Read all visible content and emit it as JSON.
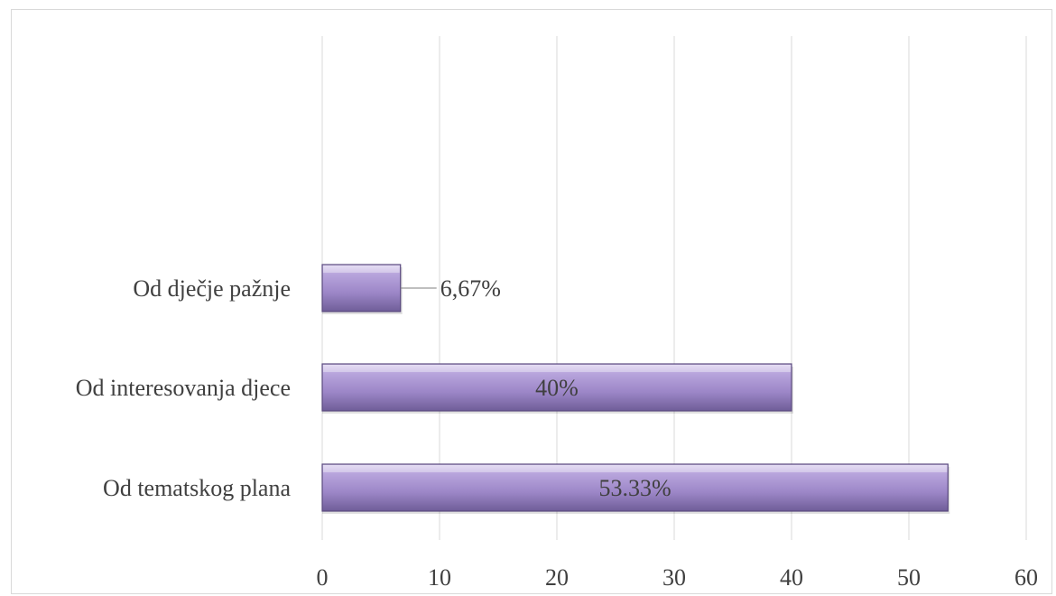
{
  "chart_data": {
    "type": "bar",
    "orientation": "horizontal",
    "categories": [
      "Od dječje pažnje",
      "Od interesovanja djece",
      "Od tematskog plana"
    ],
    "values": [
      6.67,
      40,
      53.33
    ],
    "data_labels": [
      "6,67%",
      "40%",
      "53.33%"
    ],
    "xlim": [
      0,
      60
    ],
    "xticks": [
      "0",
      "10",
      "20",
      "30",
      "40",
      "50",
      "60"
    ],
    "title": "",
    "xlabel": "",
    "ylabel": "",
    "grid": "vertical",
    "legend": "none",
    "bar_color": "#a48fc9",
    "bar_edge_color": "#5a4a7e"
  }
}
